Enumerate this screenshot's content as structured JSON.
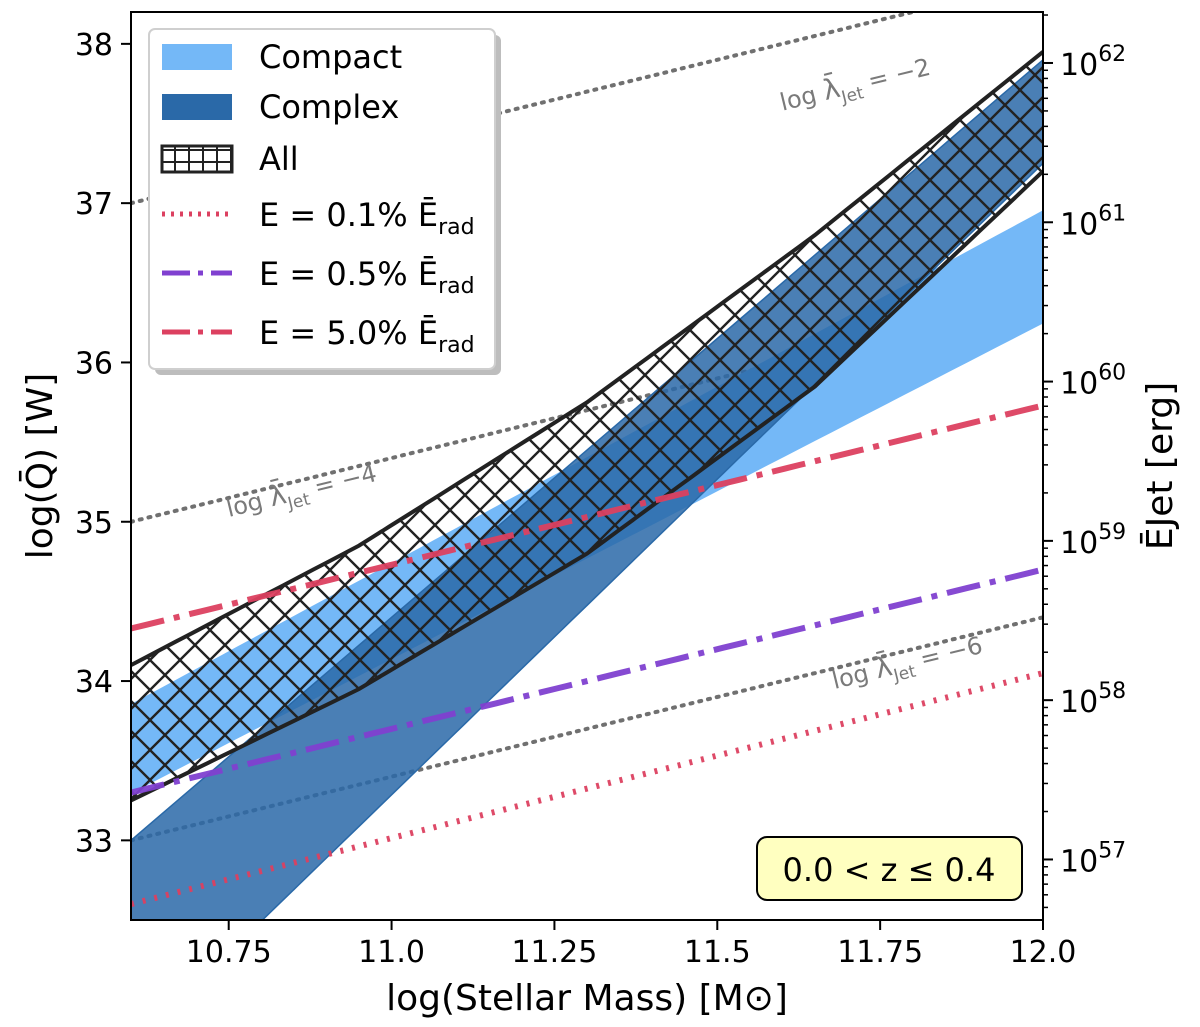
{
  "chart_data": {
    "type": "area",
    "xlabel": "log(Stellar Mass) [M⊙]",
    "ylabel": "log(Q̄) [W]",
    "y2label": "ĒJet [erg]",
    "xlim": [
      10.6,
      12.0
    ],
    "ylim": [
      32.5,
      38.2
    ],
    "xticks": [
      10.75,
      11.0,
      11.25,
      11.5,
      11.75,
      12.0
    ],
    "xtick_labels": [
      "10.75",
      "11.0",
      "11.25",
      "11.5",
      "11.75",
      "12.0"
    ],
    "yticks": [
      33,
      34,
      35,
      36,
      37,
      38
    ],
    "ytick_labels": [
      "33",
      "34",
      "35",
      "36",
      "37",
      "38"
    ],
    "y2_major_ticks": [
      {
        "y": 32.88,
        "base": "10",
        "exp": "57"
      },
      {
        "y": 33.88,
        "base": "10",
        "exp": "58"
      },
      {
        "y": 34.88,
        "base": "10",
        "exp": "59"
      },
      {
        "y": 35.88,
        "base": "10",
        "exp": "60"
      },
      {
        "y": 36.88,
        "base": "10",
        "exp": "61"
      },
      {
        "y": 37.88,
        "base": "10",
        "exp": "62"
      }
    ],
    "series": [
      {
        "name": "Compact",
        "kind": "band",
        "color": "#74b8f7",
        "x": [
          10.6,
          12.0
        ],
        "lower": [
          33.3,
          36.25
        ],
        "upper": [
          33.85,
          36.95
        ]
      },
      {
        "name": "Complex",
        "kind": "band",
        "color": "#2a69a8",
        "x": [
          10.6,
          12.0
        ],
        "lower": [
          31.7,
          37.25
        ],
        "upper": [
          33.0,
          37.9
        ]
      },
      {
        "name": "All",
        "kind": "hatched_band",
        "color": "#222222",
        "x": [
          10.6,
          10.95,
          11.3,
          11.65,
          12.0
        ],
        "lower": [
          33.25,
          33.95,
          34.8,
          35.85,
          37.2
        ],
        "upper": [
          34.1,
          34.85,
          35.75,
          36.8,
          37.95
        ]
      },
      {
        "name": "E = 0.1% Ērad",
        "kind": "line",
        "style": "dotted",
        "color": "#dc4060",
        "x": [
          10.6,
          12.0
        ],
        "y": [
          32.6,
          34.05
        ]
      },
      {
        "name": "E = 0.5% Ērad",
        "kind": "line",
        "style": "dashdot",
        "color": "#8040d0",
        "x": [
          10.6,
          12.0
        ],
        "y": [
          33.3,
          34.7
        ]
      },
      {
        "name": "E = 5.0% Ērad",
        "kind": "line",
        "style": "dashdot",
        "color": "#dc4060",
        "x": [
          10.6,
          12.0
        ],
        "y": [
          34.33,
          35.73
        ]
      }
    ],
    "reference_lines": [
      {
        "label_prefix": "log ",
        "label_sym": "λ̄",
        "label_sub": "Jet",
        "label_suffix": " = −2",
        "x": [
          10.6,
          12.0
        ],
        "y": [
          37.0,
          38.4
        ],
        "label_x": 11.6,
        "label_y": 37.58
      },
      {
        "label_prefix": "log ",
        "label_sym": "λ̄",
        "label_sub": "Jet",
        "label_suffix": " = −4",
        "x": [
          10.6,
          12.0
        ],
        "y": [
          35.0,
          36.4
        ],
        "label_x": 10.75,
        "label_y": 35.03
      },
      {
        "label_prefix": "log ",
        "label_sym": "λ̄",
        "label_sub": "Jet",
        "label_suffix": " = −6",
        "x": [
          10.6,
          12.0
        ],
        "y": [
          33.0,
          34.4
        ],
        "label_x": 11.68,
        "label_y": 33.95
      }
    ],
    "legend": {
      "placement": "top-left",
      "entries": [
        {
          "label": "Compact"
        },
        {
          "label": "Complex"
        },
        {
          "label": "All"
        },
        {
          "label_main": "E = 0.1% ",
          "label_sym": "Ē",
          "label_sub": "rad"
        },
        {
          "label_main": "E = 0.5% ",
          "label_sym": "Ē",
          "label_sub": "rad"
        },
        {
          "label_main": "E = 5.0% ",
          "label_sym": "Ē",
          "label_sub": "rad"
        }
      ]
    },
    "annotation": {
      "text": "0.0 < z ≤ 0.4",
      "placement": "bottom-right",
      "background": "#ffffc0"
    }
  }
}
